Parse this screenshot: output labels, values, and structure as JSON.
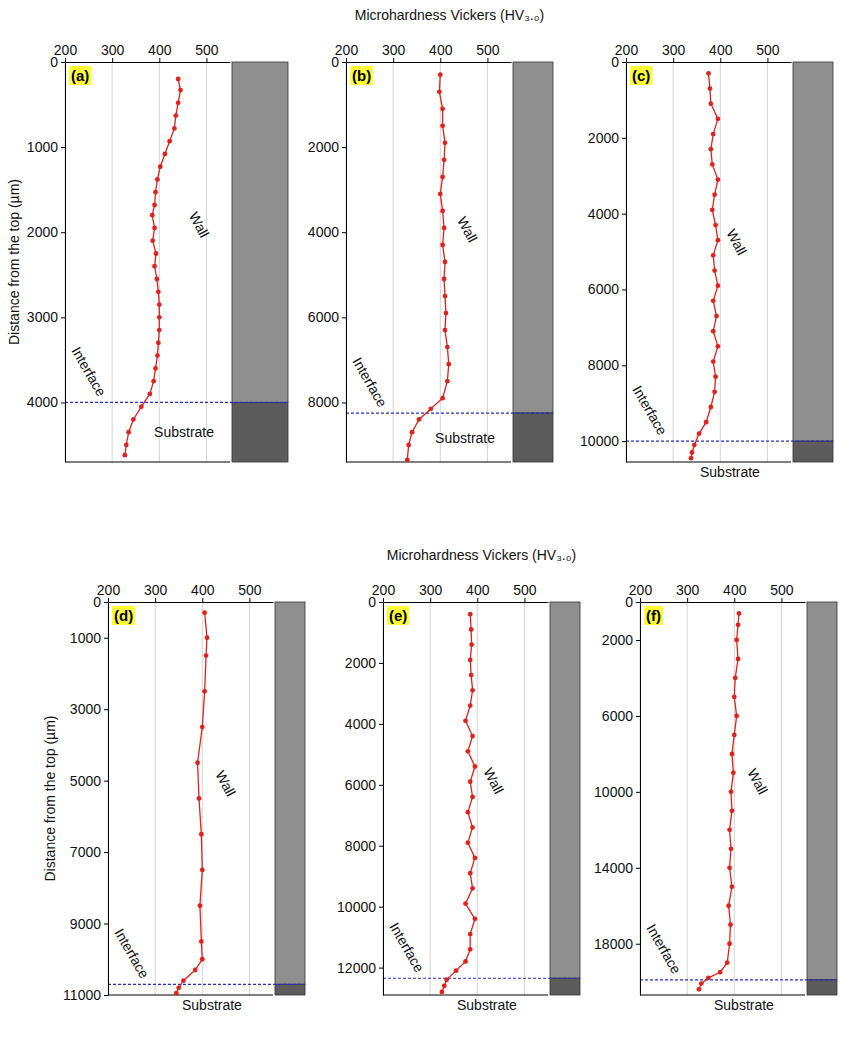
{
  "chart_data": [
    {
      "type": "line",
      "title": "(a)",
      "y_label": "Distance from the top (µm)",
      "annotations": {
        "wall": "Wall",
        "interface": "Interface",
        "substrate": "Substrate"
      },
      "xlim": [
        200,
        550
      ],
      "xticks": [
        200,
        300,
        400,
        500
      ],
      "ylim": [
        0,
        4700
      ],
      "yticks": [
        0,
        1000,
        2000,
        3000,
        4000
      ],
      "grid": true,
      "interface_depth": 4000,
      "series": [
        {
          "color": "#e3211c",
          "marker": "circle",
          "x": [
            440,
            445,
            440,
            435,
            432,
            422,
            412,
            402,
            396,
            392,
            390,
            385,
            390,
            386,
            393,
            390,
            395,
            398,
            400,
            400,
            400,
            398,
            396,
            392,
            388,
            380,
            362,
            345,
            335,
            330,
            327
          ],
          "values": [
            200,
            330,
            480,
            630,
            780,
            930,
            1080,
            1230,
            1380,
            1530,
            1680,
            1800,
            1950,
            2100,
            2250,
            2400,
            2550,
            2700,
            2850,
            3000,
            3150,
            3300,
            3450,
            3600,
            3750,
            3900,
            4050,
            4200,
            4350,
            4500,
            4620
          ]
        }
      ]
    },
    {
      "type": "line",
      "title": "(b)",
      "x_label": "Microhardness Vickers (HV₃.₀)",
      "annotations": {
        "wall": "Wall",
        "interface": "Interface",
        "substrate": "Substrate"
      },
      "xlim": [
        200,
        550
      ],
      "xticks": [
        200,
        300,
        400,
        500
      ],
      "ylim": [
        0,
        9400
      ],
      "yticks": [
        0,
        2000,
        4000,
        6000,
        8000
      ],
      "grid": true,
      "interface_depth": 8250,
      "series": [
        {
          "color": "#e3211c",
          "marker": "circle",
          "x": [
            400,
            398,
            405,
            405,
            410,
            408,
            405,
            400,
            405,
            408,
            405,
            410,
            408,
            410,
            412,
            410,
            415,
            418,
            415,
            405,
            380,
            355,
            340,
            333,
            330
          ],
          "values": [
            300,
            700,
            1100,
            1500,
            1900,
            2300,
            2700,
            3100,
            3500,
            3900,
            4300,
            4700,
            5100,
            5500,
            5900,
            6300,
            6700,
            7100,
            7500,
            7900,
            8150,
            8400,
            8700,
            9000,
            9350
          ]
        }
      ]
    },
    {
      "type": "line",
      "title": "(c)",
      "annotations": {
        "wall": "Wall",
        "interface": "Interface",
        "substrate": "Substrate"
      },
      "xlim": [
        200,
        550
      ],
      "xticks": [
        200,
        300,
        400,
        500
      ],
      "ylim": [
        0,
        10550
      ],
      "yticks": [
        0,
        2000,
        4000,
        6000,
        8000,
        10000
      ],
      "grid": true,
      "interface_depth": 10000,
      "series": [
        {
          "color": "#e3211c",
          "marker": "circle",
          "x": [
            375,
            378,
            380,
            395,
            385,
            380,
            383,
            395,
            388,
            383,
            390,
            395,
            385,
            388,
            395,
            385,
            392,
            385,
            395,
            385,
            390,
            388,
            380,
            370,
            355,
            345,
            340,
            338
          ],
          "values": [
            300,
            700,
            1100,
            1500,
            1900,
            2300,
            2700,
            3100,
            3500,
            3900,
            4300,
            4700,
            5100,
            5500,
            5900,
            6300,
            6700,
            7100,
            7500,
            7900,
            8300,
            8700,
            9100,
            9500,
            9800,
            10100,
            10300,
            10450
          ]
        }
      ]
    },
    {
      "type": "line",
      "title": "(d)",
      "y_label": "Distance from the top (µm)",
      "annotations": {
        "wall": "Wall",
        "interface": "Interface",
        "substrate": "Substrate"
      },
      "xlim": [
        200,
        550
      ],
      "xticks": [
        200,
        300,
        400,
        500
      ],
      "ylim": [
        0,
        11000
      ],
      "yticks": [
        0,
        1000,
        3000,
        5000,
        7000,
        9000,
        11000
      ],
      "grid": true,
      "interface_depth": 10700,
      "series": [
        {
          "color": "#e3211c",
          "marker": "circle",
          "x": [
            405,
            410,
            408,
            405,
            400,
            390,
            393,
            398,
            400,
            395,
            398,
            400,
            385,
            360,
            350,
            345
          ],
          "values": [
            300,
            1000,
            1500,
            2500,
            3500,
            4500,
            5500,
            6500,
            7500,
            8500,
            9500,
            10000,
            10300,
            10600,
            10800,
            10950
          ]
        }
      ]
    },
    {
      "type": "line",
      "title": "(e)",
      "x_label": "Microhardness Vickers (HV₃.₀)",
      "annotations": {
        "wall": "Wall",
        "interface": "Interface",
        "substrate": "Substrate"
      },
      "xlim": [
        200,
        550
      ],
      "xticks": [
        200,
        300,
        400,
        500
      ],
      "ylim": [
        0,
        12900
      ],
      "yticks": [
        0,
        2000,
        4000,
        6000,
        8000,
        10000,
        12000
      ],
      "grid": true,
      "interface_depth": 12350,
      "series": [
        {
          "color": "#e3211c",
          "marker": "circle",
          "x": [
            385,
            387,
            388,
            385,
            387,
            390,
            385,
            375,
            390,
            380,
            395,
            385,
            390,
            380,
            390,
            380,
            395,
            385,
            390,
            375,
            395,
            385,
            385,
            375,
            355,
            335,
            330,
            325
          ],
          "values": [
            400,
            900,
            1400,
            1900,
            2400,
            2900,
            3400,
            3900,
            4400,
            4900,
            5400,
            5900,
            6400,
            6900,
            7400,
            7900,
            8400,
            8900,
            9400,
            9900,
            10400,
            10900,
            11400,
            11800,
            12100,
            12400,
            12600,
            12800
          ]
        }
      ]
    },
    {
      "type": "line",
      "title": "(f)",
      "annotations": {
        "wall": "Wall",
        "interface": "Interface",
        "substrate": "Substrate"
      },
      "xlim": [
        200,
        550
      ],
      "xticks": [
        200,
        300,
        400,
        500
      ],
      "ylim": [
        0,
        20700
      ],
      "yticks": [
        0,
        2000,
        6000,
        10000,
        14000,
        18000
      ],
      "grid": true,
      "interface_depth": 19900,
      "series": [
        {
          "color": "#e3211c",
          "marker": "circle",
          "x": [
            410,
            408,
            405,
            408,
            402,
            400,
            405,
            400,
            395,
            398,
            393,
            395,
            390,
            393,
            390,
            395,
            388,
            392,
            390,
            385,
            370,
            345,
            330,
            325
          ],
          "values": [
            600,
            1200,
            2000,
            3000,
            4000,
            5000,
            6000,
            7000,
            8000,
            9000,
            10000,
            11000,
            12000,
            13000,
            14000,
            15000,
            16000,
            17000,
            18000,
            19000,
            19500,
            19800,
            20100,
            20400
          ]
        }
      ]
    }
  ]
}
